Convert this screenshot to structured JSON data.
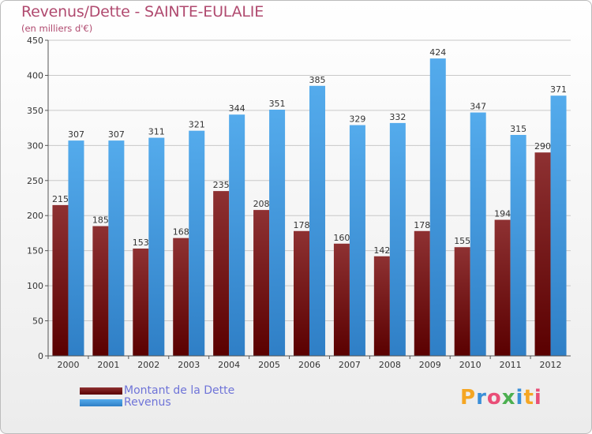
{
  "title": "Revenus/Dette - SAINTE-EULALIE",
  "subtitle": "(en milliers d'€)",
  "logo": {
    "letters": [
      "P",
      "r",
      "o",
      "x",
      "i",
      "t",
      "i"
    ],
    "colors": [
      "#f5a623",
      "#3a8fd8",
      "#e94e77",
      "#4caf50",
      "#3a8fd8",
      "#f5a623",
      "#e94e77"
    ]
  },
  "colors": {
    "dette_top": "#8e3132",
    "dette_bottom": "#5a0000",
    "revenus_top": "#54abec",
    "revenus_bottom": "#2f7fc6",
    "grid": "#c8c8c8",
    "axis_text": "#333333"
  },
  "chart_data": {
    "type": "bar",
    "categories": [
      "2000",
      "2001",
      "2002",
      "2003",
      "2004",
      "2005",
      "2006",
      "2007",
      "2008",
      "2009",
      "2010",
      "2011",
      "2012"
    ],
    "series": [
      {
        "name": "Montant de la Dette",
        "values": [
          215,
          185,
          153,
          168,
          235,
          208,
          178,
          160,
          142,
          178,
          155,
          194,
          290
        ]
      },
      {
        "name": "Revenus",
        "values": [
          307,
          307,
          311,
          321,
          344,
          351,
          385,
          329,
          332,
          424,
          347,
          315,
          371
        ]
      }
    ],
    "yticks": [
      0,
      50,
      100,
      150,
      200,
      250,
      300,
      350,
      400,
      450
    ],
    "ylim": [
      0,
      450
    ],
    "grid": true,
    "legend_position": "bottom-left"
  }
}
